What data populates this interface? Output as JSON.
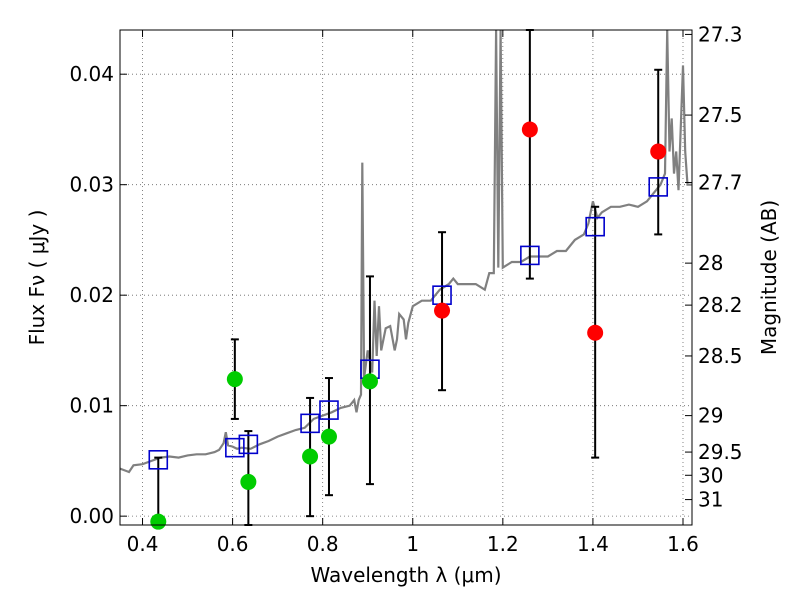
{
  "chart_data": {
    "type": "scatter",
    "xlabel": "Wavelength  λ (μm)",
    "ylabel": "Flux  Fν  ( μJy )",
    "ylabel_right": "Magnitude (AB)",
    "xlim": [
      0.35,
      1.62
    ],
    "ylim": [
      -0.0008,
      0.044
    ],
    "grid": true,
    "x_ticks": [
      0.4,
      0.6,
      0.8,
      1.0,
      1.2,
      1.4,
      1.6
    ],
    "x_tick_labels": [
      "0.4",
      "0.6",
      "0.8",
      "1",
      "1.2",
      "1.4",
      "1.6"
    ],
    "y_ticks": [
      0.0,
      0.01,
      0.02,
      0.03,
      0.04
    ],
    "y_tick_labels": [
      "0.00",
      "0.01",
      "0.02",
      "0.03",
      "0.04"
    ],
    "right_ticks": [
      {
        "label": "27.3",
        "flux": 0.0436
      },
      {
        "label": "27.5",
        "flux": 0.0363
      },
      {
        "label": "27.7",
        "flux": 0.0302
      },
      {
        "label": "28",
        "flux": 0.0229
      },
      {
        "label": "28.2",
        "flux": 0.0191
      },
      {
        "label": "28.5",
        "flux": 0.0145
      },
      {
        "label": "29",
        "flux": 0.0091
      },
      {
        "label": "29.5",
        "flux": 0.0058
      },
      {
        "label": "30",
        "flux": 0.0037
      },
      {
        "label": "31",
        "flux": 0.0015
      }
    ],
    "series": [
      {
        "kind": "line",
        "color": "#808080",
        "points": [
          [
            0.35,
            0.0043
          ],
          [
            0.37,
            0.004
          ],
          [
            0.38,
            0.0046
          ],
          [
            0.4,
            0.0047
          ],
          [
            0.42,
            0.005
          ],
          [
            0.44,
            0.0053
          ],
          [
            0.46,
            0.0054
          ],
          [
            0.48,
            0.0053
          ],
          [
            0.5,
            0.0055
          ],
          [
            0.52,
            0.0056
          ],
          [
            0.54,
            0.0056
          ],
          [
            0.56,
            0.0058
          ],
          [
            0.57,
            0.006
          ],
          [
            0.58,
            0.0066
          ],
          [
            0.585,
            0.0076
          ],
          [
            0.59,
            0.0064
          ],
          [
            0.6,
            0.0063
          ],
          [
            0.61,
            0.0061
          ],
          [
            0.62,
            0.0062
          ],
          [
            0.64,
            0.0061
          ],
          [
            0.66,
            0.0065
          ],
          [
            0.68,
            0.0068
          ],
          [
            0.7,
            0.0072
          ],
          [
            0.72,
            0.0075
          ],
          [
            0.74,
            0.0078
          ],
          [
            0.76,
            0.008
          ],
          [
            0.78,
            0.0088
          ],
          [
            0.8,
            0.0091
          ],
          [
            0.82,
            0.0094
          ],
          [
            0.84,
            0.0098
          ],
          [
            0.86,
            0.01
          ],
          [
            0.87,
            0.0105
          ],
          [
            0.875,
            0.0094
          ],
          [
            0.88,
            0.0105
          ],
          [
            0.885,
            0.011
          ],
          [
            0.888,
            0.032
          ],
          [
            0.892,
            0.0125
          ],
          [
            0.9,
            0.015
          ],
          [
            0.91,
            0.013
          ],
          [
            0.915,
            0.0195
          ],
          [
            0.92,
            0.0145
          ],
          [
            0.925,
            0.019
          ],
          [
            0.93,
            0.015
          ],
          [
            0.94,
            0.017
          ],
          [
            0.95,
            0.0172
          ],
          [
            0.96,
            0.015
          ],
          [
            0.965,
            0.016
          ],
          [
            0.97,
            0.0183
          ],
          [
            0.98,
            0.0178
          ],
          [
            0.985,
            0.016
          ],
          [
            0.99,
            0.0175
          ],
          [
            1.0,
            0.019
          ],
          [
            1.02,
            0.0195
          ],
          [
            1.04,
            0.0195
          ],
          [
            1.06,
            0.0205
          ],
          [
            1.08,
            0.021
          ],
          [
            1.09,
            0.0215
          ],
          [
            1.1,
            0.021
          ],
          [
            1.12,
            0.021
          ],
          [
            1.14,
            0.021
          ],
          [
            1.16,
            0.0205
          ],
          [
            1.17,
            0.022
          ],
          [
            1.18,
            0.022
          ],
          [
            1.185,
            0.044
          ],
          [
            1.19,
            0.0225
          ],
          [
            1.195,
            0.044
          ],
          [
            1.2,
            0.0225
          ],
          [
            1.22,
            0.023
          ],
          [
            1.24,
            0.023
          ],
          [
            1.26,
            0.0235
          ],
          [
            1.28,
            0.0235
          ],
          [
            1.3,
            0.0235
          ],
          [
            1.32,
            0.024
          ],
          [
            1.34,
            0.024
          ],
          [
            1.36,
            0.025
          ],
          [
            1.38,
            0.0255
          ],
          [
            1.39,
            0.0265
          ],
          [
            1.4,
            0.0285
          ],
          [
            1.41,
            0.027
          ],
          [
            1.42,
            0.0275
          ],
          [
            1.44,
            0.028
          ],
          [
            1.46,
            0.028
          ],
          [
            1.48,
            0.0282
          ],
          [
            1.5,
            0.028
          ],
          [
            1.52,
            0.0285
          ],
          [
            1.54,
            0.0295
          ],
          [
            1.55,
            0.03
          ],
          [
            1.56,
            0.031
          ],
          [
            1.565,
            0.044
          ],
          [
            1.57,
            0.033
          ],
          [
            1.575,
            0.036
          ],
          [
            1.58,
            0.031
          ],
          [
            1.585,
            0.033
          ],
          [
            1.59,
            0.0295
          ],
          [
            1.6,
            0.0408
          ],
          [
            1.605,
            0.033
          ],
          [
            1.61,
            0.03
          ],
          [
            1.62,
            0.03
          ]
        ]
      },
      {
        "kind": "model_boxes",
        "color": "#0000cc",
        "points": [
          [
            0.435,
            0.0051
          ],
          [
            0.605,
            0.0062
          ],
          [
            0.635,
            0.0065
          ],
          [
            0.772,
            0.0084
          ],
          [
            0.814,
            0.0096
          ],
          [
            0.905,
            0.0133
          ],
          [
            1.065,
            0.02
          ],
          [
            1.26,
            0.0236
          ],
          [
            1.405,
            0.0262
          ],
          [
            1.545,
            0.0298
          ]
        ]
      },
      {
        "kind": "green_points",
        "color": "#00cc00",
        "points": [
          [
            0.435,
            -0.0005
          ],
          [
            0.605,
            0.0124
          ],
          [
            0.635,
            0.0031
          ],
          [
            0.772,
            0.0054
          ],
          [
            0.814,
            0.0072
          ],
          [
            0.905,
            0.0122
          ]
        ]
      },
      {
        "kind": "red_points",
        "color": "#ff0000",
        "points": [
          [
            1.065,
            0.0186
          ],
          [
            1.26,
            0.035
          ],
          [
            1.405,
            0.0166
          ],
          [
            1.545,
            0.033
          ]
        ]
      },
      {
        "kind": "errorbars",
        "color": "#000000",
        "bars": [
          [
            0.435,
            0.0,
            0.0053
          ],
          [
            0.605,
            0.0088,
            0.016
          ],
          [
            0.635,
            -0.0008,
            0.0077
          ],
          [
            0.772,
            0.0,
            0.0107
          ],
          [
            0.814,
            0.0019,
            0.0125
          ],
          [
            0.905,
            0.0029,
            0.0217
          ],
          [
            1.065,
            0.0114,
            0.0257
          ],
          [
            1.26,
            0.0215,
            0.044
          ],
          [
            1.405,
            0.0053,
            0.028
          ],
          [
            1.545,
            0.0255,
            0.0404
          ]
        ]
      }
    ]
  }
}
